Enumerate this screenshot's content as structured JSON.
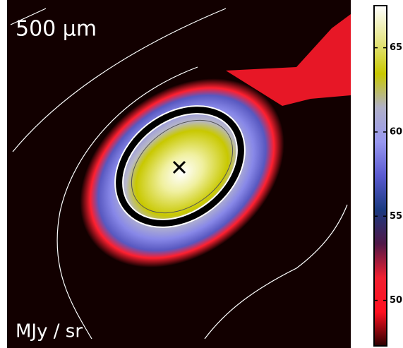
{
  "chart_data": {
    "type": "image",
    "title": "500 μm",
    "colorbar_label": "MJy / sr",
    "clim": [
      47.3,
      67.5
    ],
    "cticks": [
      50,
      55,
      60,
      65
    ],
    "colormap": [
      "#2a0000",
      "#ff1020",
      "#f02030",
      "#501848",
      "#1a3a80",
      "#5a5ad0",
      "#9898f0",
      "#b0b0c8",
      "#c8c800",
      "#e6e68a",
      "#ffffff"
    ]
  }
}
